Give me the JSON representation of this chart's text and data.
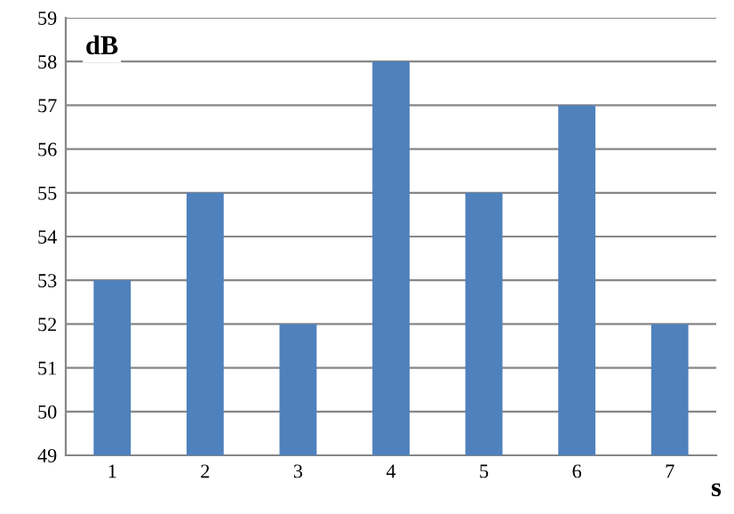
{
  "chart_data": {
    "type": "bar",
    "xlabel": "s",
    "ylabel": "dB",
    "categories": [
      "1",
      "2",
      "3",
      "4",
      "5",
      "6",
      "7"
    ],
    "values": [
      53,
      55,
      52,
      58,
      55,
      57,
      52
    ],
    "color": "#4f81bd",
    "ylim": [
      49,
      59
    ],
    "yticks": [
      49,
      50,
      51,
      52,
      53,
      54,
      55,
      56,
      57,
      58,
      59
    ],
    "grid": "y"
  }
}
